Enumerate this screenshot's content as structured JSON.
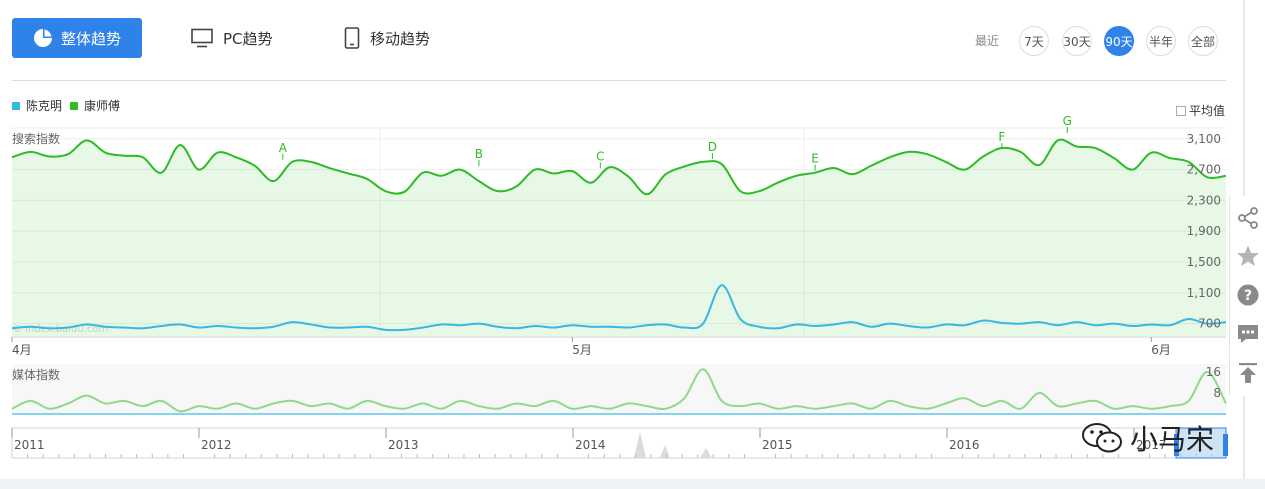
{
  "tabs": [
    {
      "label": "整体趋势",
      "active": true,
      "icon": "pie-chart-icon"
    },
    {
      "label": "PC趋势",
      "active": false,
      "icon": "monitor-icon"
    },
    {
      "label": "移动趋势",
      "active": false,
      "icon": "mobile-icon"
    }
  ],
  "range": {
    "label": "最近",
    "options": [
      "7天",
      "30天",
      "90天",
      "半年",
      "全部"
    ],
    "selected": "90天"
  },
  "legend": [
    {
      "name": "陈克明",
      "color": "#3ab5e6"
    },
    {
      "name": "康师傅",
      "color": "#2dbb26"
    }
  ],
  "average_label": "平均值",
  "colors": {
    "accent": "#2e82e8",
    "series_a": "#3ab5e6",
    "series_b": "#2dbb26",
    "media": "#8fd98a"
  },
  "search_chart": {
    "title": "搜索指数",
    "watermark_text": "© index.baidu.com",
    "y_ticks": [
      700,
      1100,
      1500,
      1900,
      2300,
      2700,
      3100
    ],
    "y_tick_labels": [
      "700",
      "1,100",
      "1,500",
      "1,900",
      "2,300",
      "2,700",
      "3,100"
    ],
    "x_labels": [
      {
        "label": "4月",
        "day": 0
      },
      {
        "label": "5月",
        "day": 30
      },
      {
        "label": "6月",
        "day": 61
      }
    ],
    "annotations": [
      {
        "label": "A",
        "day": 14.5,
        "value": 2800
      },
      {
        "label": "B",
        "day": 25,
        "value": 2720
      },
      {
        "label": "C",
        "day": 31.5,
        "value": 2690
      },
      {
        "label": "D",
        "day": 37.5,
        "value": 2810
      },
      {
        "label": "E",
        "day": 43,
        "value": 2660
      },
      {
        "label": "F",
        "day": 53,
        "value": 2940
      },
      {
        "label": "G",
        "day": 56.5,
        "value": 3150
      }
    ]
  },
  "chart_data": {
    "type": "area",
    "days": 66,
    "x_start_label": "4月",
    "ylim": [
      540,
      3240
    ],
    "series": [
      {
        "name": "康师傅",
        "values": [
          2860,
          2930,
          2870,
          2900,
          3080,
          2920,
          2880,
          2860,
          2660,
          3020,
          2700,
          2920,
          2860,
          2750,
          2550,
          2800,
          2800,
          2720,
          2650,
          2580,
          2420,
          2410,
          2660,
          2620,
          2700,
          2550,
          2420,
          2480,
          2700,
          2650,
          2680,
          2530,
          2730,
          2610,
          2380,
          2640,
          2740,
          2800,
          2770,
          2420,
          2420,
          2530,
          2620,
          2660,
          2720,
          2640,
          2750,
          2860,
          2930,
          2900,
          2800,
          2700,
          2870,
          2980,
          2930,
          2760,
          3080,
          3000,
          2980,
          2850,
          2700,
          2920,
          2850,
          2800,
          2600,
          2620
        ]
      },
      {
        "name": "陈克明",
        "values": [
          640,
          660,
          640,
          650,
          690,
          660,
          650,
          640,
          670,
          690,
          650,
          670,
          650,
          640,
          660,
          720,
          690,
          650,
          650,
          660,
          620,
          620,
          650,
          690,
          680,
          700,
          660,
          640,
          670,
          650,
          680,
          660,
          660,
          650,
          680,
          690,
          650,
          700,
          1200,
          760,
          660,
          640,
          690,
          670,
          690,
          720,
          660,
          700,
          670,
          650,
          690,
          680,
          740,
          710,
          700,
          720,
          680,
          720,
          680,
          700,
          670,
          690,
          680,
          760,
          700,
          720
        ]
      }
    ]
  },
  "media_chart": {
    "title": "媒体指数",
    "y_tick_labels": [
      "8",
      "16"
    ],
    "y_ticks": [
      8,
      16
    ],
    "ylim": [
      0,
      19
    ],
    "series": [
      {
        "name": "康师傅",
        "values": [
          2,
          5,
          2,
          4,
          7,
          4,
          5,
          3,
          5,
          1,
          3,
          2,
          4,
          2,
          4,
          5,
          3,
          4,
          2,
          5,
          3,
          2,
          4,
          2,
          5,
          3,
          2,
          4,
          3,
          5,
          2,
          3,
          2,
          4,
          3,
          2,
          6,
          17,
          5,
          3,
          4,
          2,
          3,
          2,
          3,
          4,
          2,
          5,
          3,
          2,
          4,
          6,
          3,
          5,
          2,
          8,
          3,
          4,
          5,
          2,
          3,
          2,
          3,
          5,
          16,
          4
        ]
      }
    ]
  },
  "timeline": {
    "years": [
      "2011",
      "2012",
      "2013",
      "2014",
      "2015",
      "2016",
      "2017"
    ]
  },
  "brand_watermark": "小马宋"
}
